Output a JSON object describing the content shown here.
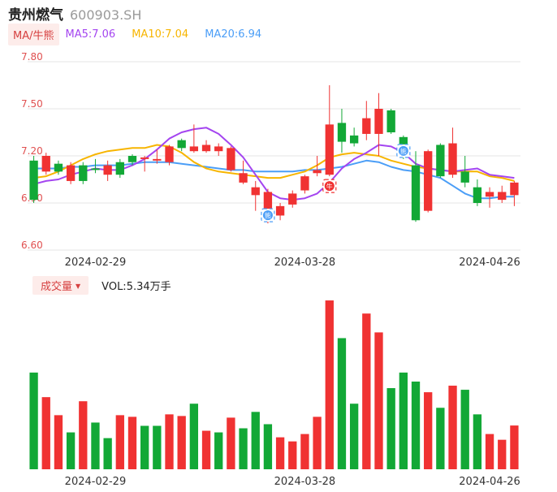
{
  "header": {
    "name": "贵州燃气",
    "code": "600903.SH"
  },
  "ma_legend": {
    "button": "MA/牛熊",
    "ma5": "MA5:7.06",
    "ma10": "MA10:7.04",
    "ma20": "MA20:6.94"
  },
  "volume_legend": {
    "button": "成交量",
    "value": "VOL:5.34万手"
  },
  "colors": {
    "up": "#f03232",
    "down": "#12a836",
    "ma5": "#a445f0",
    "ma10": "#f7b500",
    "ma20": "#4b9ef7",
    "grid": "#e6e6e6",
    "axis_label": "#e05050"
  },
  "chart_data": [
    {
      "type": "candlestick",
      "title": "",
      "yticks": [
        "7.80",
        "7.50",
        "7.20",
        "6.90",
        "6.60"
      ],
      "ylim": [
        6.6,
        7.8
      ],
      "xtick_labels": [
        {
          "label": "2024-02-29",
          "index": 5
        },
        {
          "label": "2024-03-28",
          "index": 22
        },
        {
          "label": "2024-04-26",
          "index": 37
        }
      ],
      "candles": [
        {
          "o": 7.17,
          "c": 6.92,
          "h": 7.2,
          "l": 6.9
        },
        {
          "o": 7.1,
          "c": 7.2,
          "h": 7.22,
          "l": 7.08
        },
        {
          "o": 7.15,
          "c": 7.1,
          "h": 7.17,
          "l": 7.08
        },
        {
          "o": 7.04,
          "c": 7.14,
          "h": 7.16,
          "l": 7.02
        },
        {
          "o": 7.14,
          "c": 7.04,
          "h": 7.16,
          "l": 7.02
        },
        {
          "o": 7.12,
          "c": 7.11,
          "h": 7.18,
          "l": 7.09
        },
        {
          "o": 7.08,
          "c": 7.14,
          "h": 7.17,
          "l": 7.04
        },
        {
          "o": 7.16,
          "c": 7.08,
          "h": 7.18,
          "l": 7.06
        },
        {
          "o": 7.2,
          "c": 7.16,
          "h": 7.21,
          "l": 7.14
        },
        {
          "o": 7.18,
          "c": 7.19,
          "h": 7.2,
          "l": 7.1
        },
        {
          "o": 7.17,
          "c": 7.18,
          "h": 7.24,
          "l": 7.15
        },
        {
          "o": 7.16,
          "c": 7.26,
          "h": 7.27,
          "l": 7.14
        },
        {
          "o": 7.3,
          "c": 7.25,
          "h": 7.31,
          "l": 7.23
        },
        {
          "o": 7.23,
          "c": 7.26,
          "h": 7.4,
          "l": 7.22
        },
        {
          "o": 7.23,
          "c": 7.27,
          "h": 7.3,
          "l": 7.22
        },
        {
          "o": 7.23,
          "c": 7.26,
          "h": 7.28,
          "l": 7.2
        },
        {
          "o": 7.11,
          "c": 7.25,
          "h": 7.26,
          "l": 7.1
        },
        {
          "o": 7.03,
          "c": 7.09,
          "h": 7.17,
          "l": 7.02
        },
        {
          "o": 6.95,
          "c": 7.0,
          "h": 7.04,
          "l": 6.85
        },
        {
          "o": 6.78,
          "c": 6.97,
          "h": 6.99,
          "l": 6.77
        },
        {
          "o": 6.82,
          "c": 6.88,
          "h": 6.9,
          "l": 6.79
        },
        {
          "o": 6.89,
          "c": 6.96,
          "h": 6.98,
          "l": 6.87
        },
        {
          "o": 6.98,
          "c": 7.07,
          "h": 7.08,
          "l": 6.96
        },
        {
          "o": 7.09,
          "c": 7.11,
          "h": 7.2,
          "l": 7.07
        },
        {
          "o": 7.08,
          "c": 7.4,
          "h": 7.65,
          "l": 7.07
        },
        {
          "o": 7.41,
          "c": 7.29,
          "h": 7.5,
          "l": 7.22
        },
        {
          "o": 7.33,
          "c": 7.28,
          "h": 7.38,
          "l": 7.26
        },
        {
          "o": 7.34,
          "c": 7.44,
          "h": 7.55,
          "l": 7.3
        },
        {
          "o": 7.34,
          "c": 7.5,
          "h": 7.6,
          "l": 7.2
        },
        {
          "o": 7.49,
          "c": 7.35,
          "h": 7.5,
          "l": 7.34
        },
        {
          "o": 7.32,
          "c": 7.22,
          "h": 7.33,
          "l": 7.18
        },
        {
          "o": 7.14,
          "c": 6.79,
          "h": 7.23,
          "l": 6.78
        },
        {
          "o": 6.85,
          "c": 7.23,
          "h": 7.24,
          "l": 6.84
        },
        {
          "o": 7.27,
          "c": 7.07,
          "h": 7.28,
          "l": 7.06
        },
        {
          "o": 7.08,
          "c": 7.28,
          "h": 7.38,
          "l": 7.06
        },
        {
          "o": 7.1,
          "c": 7.03,
          "h": 7.2,
          "l": 7.0
        },
        {
          "o": 7.0,
          "c": 6.9,
          "h": 7.05,
          "l": 6.88
        },
        {
          "o": 6.94,
          "c": 6.97,
          "h": 7.0,
          "l": 6.87
        },
        {
          "o": 6.92,
          "c": 6.97,
          "h": 7.01,
          "l": 6.9
        },
        {
          "o": 6.95,
          "c": 7.03,
          "h": 7.04,
          "l": 6.88
        }
      ],
      "ma5": [
        7.02,
        7.04,
        7.05,
        7.08,
        7.1,
        7.12,
        7.11,
        7.11,
        7.14,
        7.18,
        7.24,
        7.31,
        7.35,
        7.37,
        7.38,
        7.34,
        7.27,
        7.19,
        7.08,
        6.97,
        6.93,
        6.92,
        6.93,
        6.96,
        7.03,
        7.12,
        7.18,
        7.22,
        7.27,
        7.26,
        7.22,
        7.15,
        7.12,
        7.11,
        7.1,
        7.11,
        7.12,
        7.08,
        7.07,
        7.06
      ],
      "ma10": [
        7.06,
        7.07,
        7.1,
        7.14,
        7.18,
        7.21,
        7.23,
        7.24,
        7.25,
        7.25,
        7.27,
        7.26,
        7.22,
        7.16,
        7.12,
        7.1,
        7.09,
        7.08,
        7.07,
        7.06,
        7.06,
        7.08,
        7.1,
        7.14,
        7.19,
        7.21,
        7.22,
        7.21,
        7.2,
        7.17,
        7.15,
        7.13,
        7.12,
        7.11,
        7.1,
        7.1,
        7.1,
        7.07,
        7.06,
        7.04
      ],
      "ma20": [
        7.12,
        7.12,
        7.12,
        7.13,
        7.13,
        7.14,
        7.14,
        7.14,
        7.15,
        7.16,
        7.16,
        7.16,
        7.15,
        7.14,
        7.13,
        7.12,
        7.11,
        7.11,
        7.1,
        7.1,
        7.1,
        7.1,
        7.11,
        7.11,
        7.12,
        7.13,
        7.15,
        7.17,
        7.16,
        7.13,
        7.11,
        7.1,
        7.08,
        7.06,
        7.01,
        6.96,
        6.93,
        6.93,
        6.94,
        6.94
      ],
      "markers": [
        {
          "index": 19,
          "kind": "bear",
          "label": "熊",
          "color": "#4b9ef7"
        },
        {
          "index": 24,
          "kind": "bull",
          "label": "牛",
          "color": "#f03232"
        },
        {
          "index": 30,
          "kind": "bear",
          "label": "熊",
          "color": "#4b9ef7"
        }
      ]
    },
    {
      "type": "bar",
      "title": "成交量",
      "unit": "万手",
      "ylim": [
        0,
        21
      ],
      "values": [
        11.8,
        8.8,
        6.6,
        4.5,
        8.3,
        5.7,
        3.8,
        6.6,
        6.4,
        5.3,
        5.3,
        6.7,
        6.5,
        8.0,
        4.7,
        4.5,
        6.3,
        5.0,
        7.0,
        5.5,
        3.9,
        3.4,
        4.3,
        6.4,
        20.6,
        16.0,
        8.0,
        19.0,
        16.7,
        9.9,
        11.8,
        10.7,
        9.4,
        7.5,
        10.2,
        9.7,
        6.7,
        4.3,
        3.6,
        5.34
      ],
      "directions": [
        "down",
        "up",
        "up",
        "down",
        "up",
        "down",
        "down",
        "up",
        "up",
        "down",
        "down",
        "up",
        "up",
        "down",
        "up",
        "down",
        "up",
        "down",
        "down",
        "down",
        "up",
        "up",
        "up",
        "up",
        "up",
        "down",
        "down",
        "up",
        "up",
        "down",
        "down",
        "down",
        "up",
        "down",
        "up",
        "down",
        "down",
        "up",
        "up",
        "up"
      ]
    }
  ]
}
